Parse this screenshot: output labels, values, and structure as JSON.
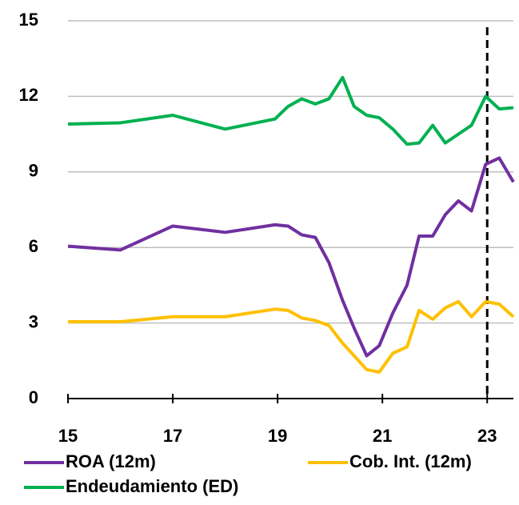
{
  "chart_data": {
    "type": "line",
    "x": [
      15,
      16,
      17,
      18,
      18.95,
      19.2,
      19.46,
      19.72,
      19.98,
      20.24,
      20.46,
      20.7,
      20.94,
      21.2,
      21.47,
      21.7,
      21.96,
      22.2,
      22.45,
      22.7,
      22.97,
      23.23,
      23.5
    ],
    "series": [
      {
        "name": "ROA (12m)",
        "color": "#7030a0",
        "values": [
          6.05,
          5.9,
          6.85,
          6.6,
          6.9,
          6.85,
          6.5,
          6.4,
          5.4,
          3.9,
          2.8,
          1.7,
          2.1,
          3.4,
          4.5,
          6.45,
          6.45,
          7.3,
          7.85,
          7.45,
          9.3,
          9.55,
          8.6
        ]
      },
      {
        "name": "Cob. Int. (12m)",
        "color": "#ffc000",
        "values": [
          3.05,
          3.05,
          3.25,
          3.25,
          3.55,
          3.5,
          3.2,
          3.1,
          2.9,
          2.2,
          1.7,
          1.15,
          1.05,
          1.8,
          2.05,
          3.5,
          3.15,
          3.6,
          3.85,
          3.25,
          3.85,
          3.75,
          3.25
        ]
      },
      {
        "name": "Endeudamiento (ED)",
        "color": "#00b050",
        "values": [
          10.9,
          10.95,
          11.25,
          10.7,
          11.1,
          11.6,
          11.9,
          11.7,
          11.9,
          12.75,
          11.6,
          11.25,
          11.15,
          10.7,
          10.1,
          10.15,
          10.85,
          10.15,
          10.5,
          10.85,
          12.0,
          11.5,
          11.55
        ]
      }
    ],
    "xlim": [
      15,
      23.5
    ],
    "xticks": [
      15,
      17,
      19,
      21,
      23
    ],
    "ylim": [
      0,
      15
    ],
    "yticks": [
      0,
      3,
      6,
      9,
      12,
      15
    ],
    "grid": true,
    "vline_x": 23
  }
}
